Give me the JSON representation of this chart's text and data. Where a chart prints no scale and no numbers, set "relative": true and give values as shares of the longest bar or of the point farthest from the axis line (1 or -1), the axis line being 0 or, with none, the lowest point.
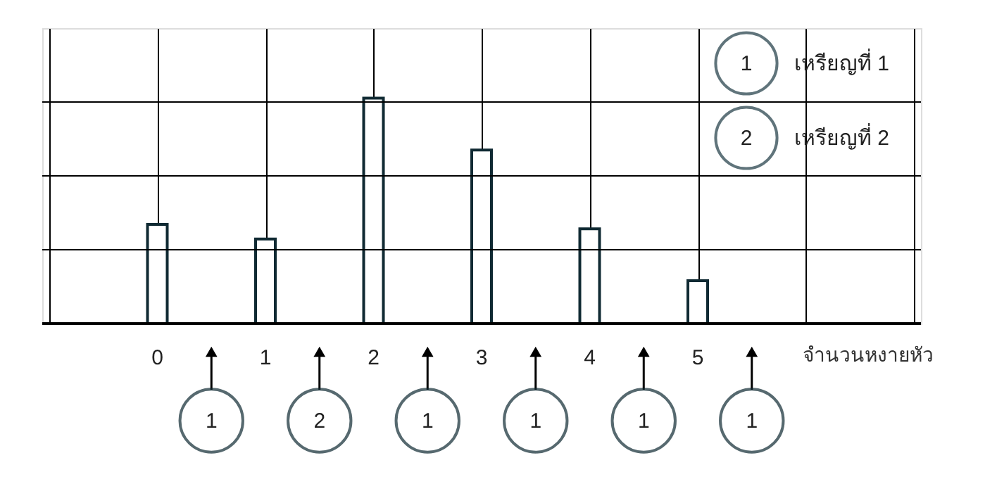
{
  "chart_data": {
    "type": "bar",
    "relative": true,
    "categories": [
      "0",
      "1",
      "2",
      "3",
      "4",
      "5"
    ],
    "values": [
      0.44,
      0.375,
      1,
      0.77,
      0.42,
      0.19
    ],
    "color": "#ffffff",
    "xlabel": "จำนวนหงายหัว",
    "grid": true,
    "annotations": [
      "1",
      "เหรียญที่ 1",
      "2",
      "เหรียญที่ 2",
      "1",
      "2",
      "1",
      "1",
      "1",
      "1"
    ]
  }
}
